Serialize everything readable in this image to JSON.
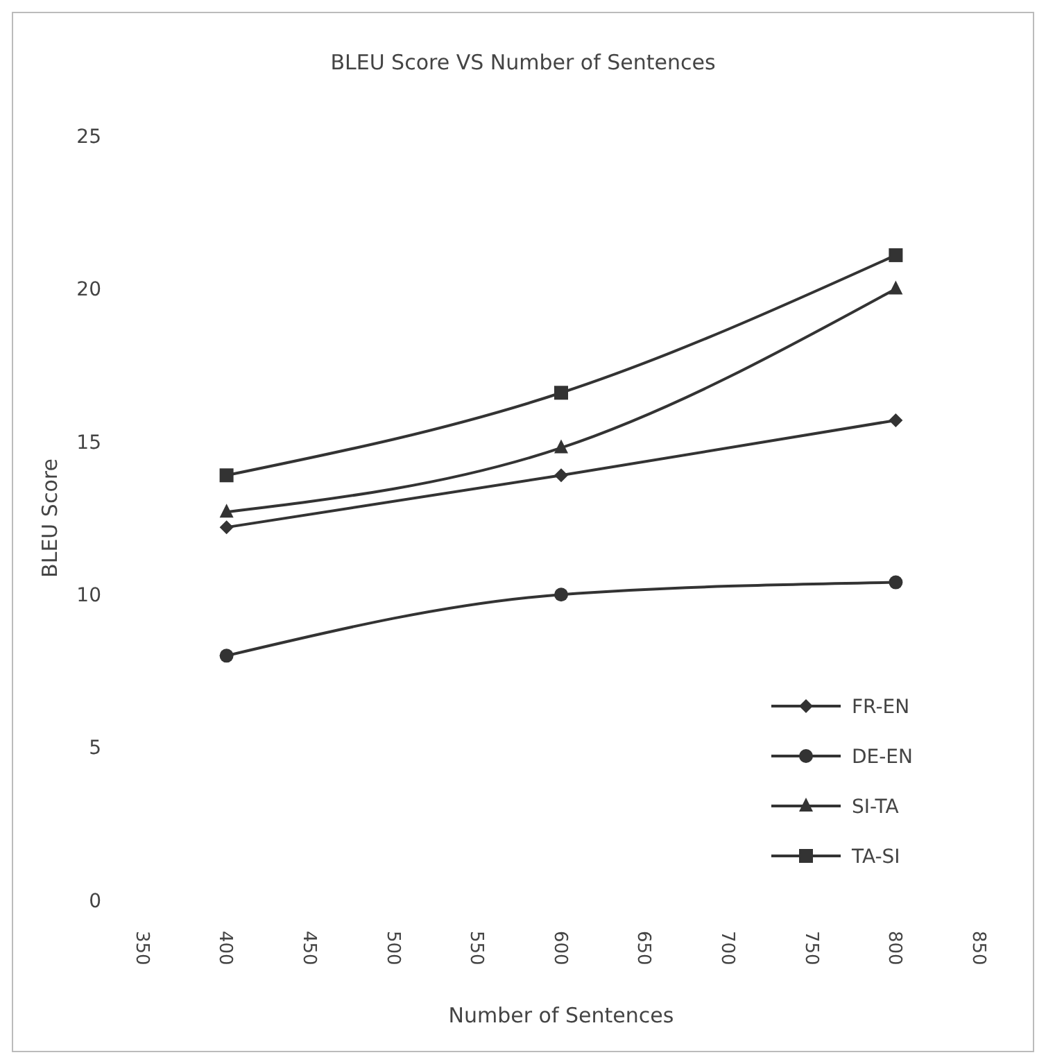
{
  "chart_data": {
    "type": "line",
    "title": "BLEU Score VS Number of Sentences",
    "xlabel": "Number of Sentences",
    "ylabel": "BLEU Score",
    "x": [
      400,
      600,
      800
    ],
    "series": [
      {
        "name": "FR-EN",
        "color": "#333333",
        "marker": "diamond",
        "values": [
          12.2,
          13.9,
          15.7
        ]
      },
      {
        "name": "DE-EN",
        "color": "#333333",
        "marker": "circle",
        "values": [
          8.0,
          10.0,
          10.4
        ]
      },
      {
        "name": "SI-TA",
        "color": "#333333",
        "marker": "triangle",
        "values": [
          12.7,
          14.8,
          20.0
        ]
      },
      {
        "name": "TA-SI",
        "color": "#333333",
        "marker": "square",
        "values": [
          13.9,
          16.6,
          21.1
        ]
      }
    ],
    "xlim": [
      350,
      850
    ],
    "xticks": [
      350,
      400,
      450,
      500,
      550,
      600,
      650,
      700,
      750,
      800,
      850
    ],
    "ylim": [
      0,
      25
    ],
    "yticks": [
      0,
      5,
      10,
      15,
      20,
      25
    ],
    "grid": false,
    "legend": "bottom right",
    "line_style": "solid"
  }
}
